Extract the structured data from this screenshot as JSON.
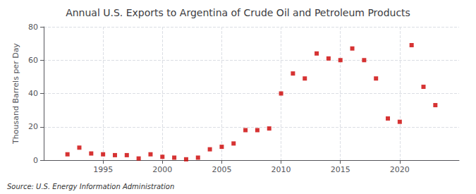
{
  "chart_data": {
    "type": "scatter",
    "title": "Annual U.S. Exports to Argentina of Crude Oil and Petroleum Products",
    "ylabel": "Thousand Barrels per Day",
    "source": "Source: U.S. Energy Information Administration",
    "x": [
      1992,
      1993,
      1994,
      1995,
      1996,
      1997,
      1998,
      1999,
      2000,
      2001,
      2002,
      2003,
      2004,
      2005,
      2006,
      2007,
      2008,
      2009,
      2010,
      2011,
      2012,
      2013,
      2014,
      2015,
      2016,
      2017,
      2018,
      2019,
      2020,
      2021,
      2022,
      2023
    ],
    "values": [
      3.5,
      7.5,
      4.0,
      3.5,
      3.0,
      3.0,
      1.0,
      3.5,
      2.0,
      1.5,
      0.5,
      1.5,
      6.5,
      8.0,
      10.0,
      18.0,
      18.0,
      19.0,
      40.0,
      52.0,
      49.0,
      64.0,
      61.0,
      60.0,
      67.0,
      60.0,
      49.0,
      25.0,
      23.0,
      69.0,
      44.0,
      33.0
    ],
    "color": "#cc0000",
    "marker": "square",
    "xlim": [
      1990,
      2025
    ],
    "xticks": [
      1995,
      2000,
      2005,
      2010,
      2015,
      2020
    ],
    "ylim": [
      0,
      80
    ],
    "yticks": [
      0,
      20,
      40,
      60,
      80
    ],
    "grid": true
  }
}
